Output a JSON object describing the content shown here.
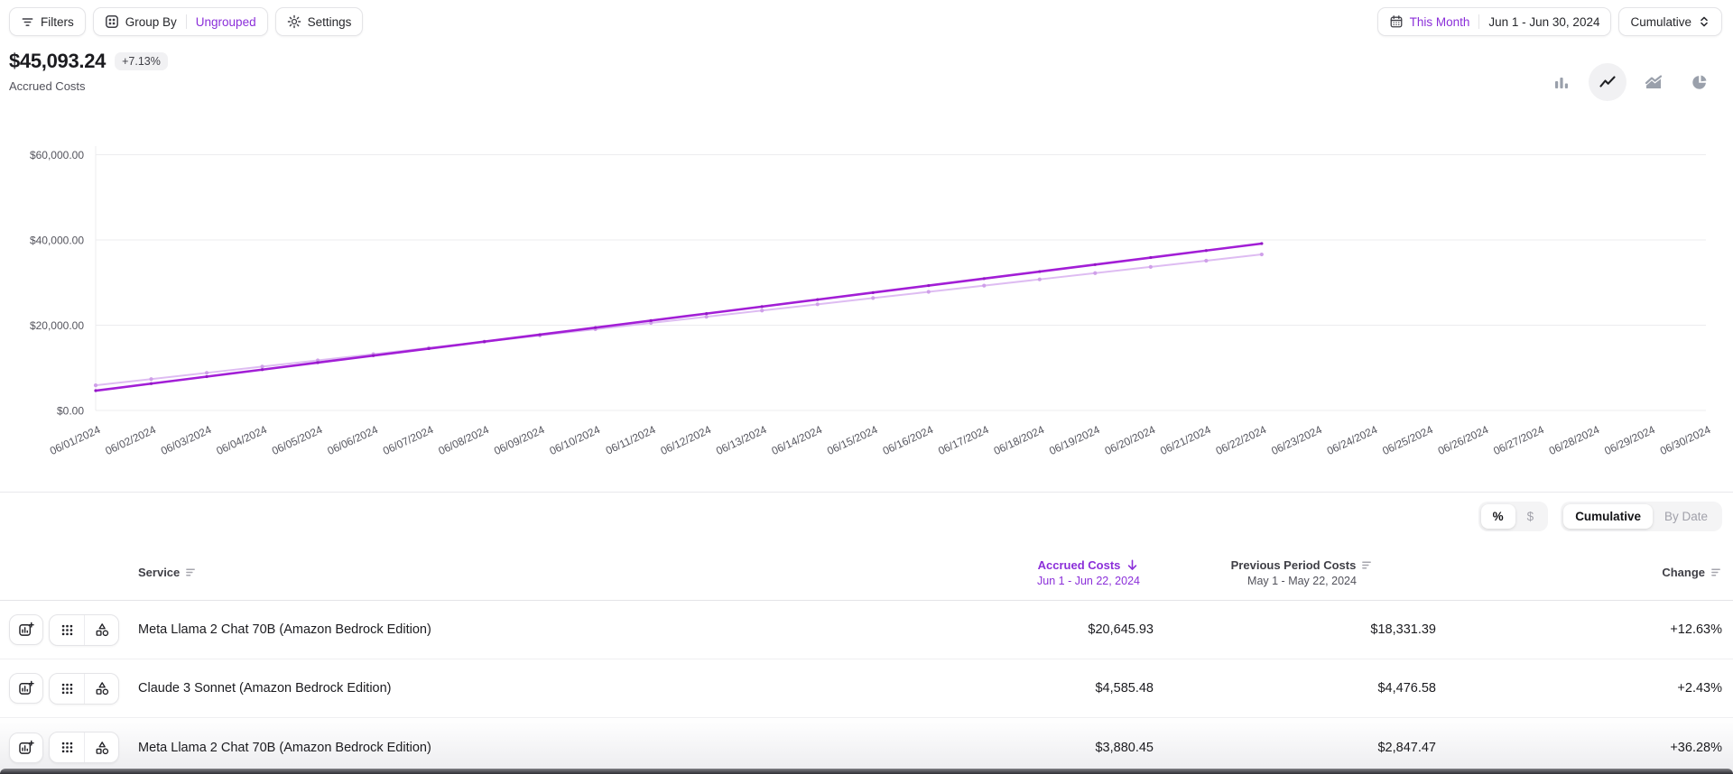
{
  "colors": {
    "accent": "#8b2fd9",
    "grid": "#ececef",
    "axis_text": "#55555e",
    "icon_gray": "#9aa0ab"
  },
  "toolbar": {
    "filters": "Filters",
    "group_by": "Group By",
    "group_by_value": "Ungrouped",
    "settings": "Settings",
    "date_preset": "This Month",
    "date_range": "Jun 1 - Jun 30, 2024",
    "granularity": "Cumulative"
  },
  "summary": {
    "total": "$45,093.24",
    "change_badge": "+7.13%",
    "label": "Accrued Costs"
  },
  "chart_toolbar": {
    "icons": [
      "bar-chart-icon",
      "line-chart-icon",
      "area-chart-icon",
      "pie-chart-icon"
    ],
    "selected": "line-chart-icon"
  },
  "chart_data": {
    "type": "line",
    "title": "Accrued Costs",
    "xlabel": "",
    "ylabel": "",
    "ylim": [
      0,
      60000
    ],
    "grid": true,
    "legend": "none",
    "yticks": [
      {
        "label": "$0.00",
        "value": 0
      },
      {
        "label": "$20,000.00",
        "value": 20000
      },
      {
        "label": "$40,000.00",
        "value": 40000
      },
      {
        "label": "$60,000.00",
        "value": 60000
      }
    ],
    "x": [
      "06/01/2024",
      "06/02/2024",
      "06/03/2024",
      "06/04/2024",
      "06/05/2024",
      "06/06/2024",
      "06/07/2024",
      "06/08/2024",
      "06/09/2024",
      "06/10/2024",
      "06/11/2024",
      "06/12/2024",
      "06/13/2024",
      "06/14/2024",
      "06/15/2024",
      "06/16/2024",
      "06/17/2024",
      "06/18/2024",
      "06/19/2024",
      "06/20/2024",
      "06/21/2024",
      "06/22/2024",
      "06/23/2024",
      "06/24/2024",
      "06/25/2024",
      "06/26/2024",
      "06/27/2024",
      "06/28/2024",
      "06/29/2024",
      "06/30/2024"
    ],
    "series": [
      {
        "name": "Accrued Costs (Jun 1 - Jun 22, 2024)",
        "color": "#a21ed6",
        "marker": "#9218c4",
        "values": [
          4650,
          6293,
          7936,
          9579,
          11222,
          12865,
          14508,
          16151,
          17794,
          19437,
          21080,
          22723,
          24366,
          26009,
          27652,
          29295,
          30938,
          32581,
          34224,
          35867,
          37510,
          39153
        ]
      },
      {
        "name": "Previous Period Costs (May 1 - May 22, 2024)",
        "color": "#debcf2",
        "marker": "#cf9fe9",
        "values": [
          5900,
          7362,
          8824,
          10286,
          11748,
          13210,
          14672,
          16134,
          17596,
          19058,
          20520,
          21982,
          23444,
          24906,
          26368,
          27830,
          29292,
          30754,
          32216,
          33678,
          35140,
          36602
        ]
      }
    ]
  },
  "view_toggles": {
    "percent": "%",
    "dollar": "$",
    "cumulative": "Cumulative",
    "by_date": "By Date",
    "selected_unit": "%",
    "selected_mode": "Cumulative"
  },
  "table": {
    "headers": {
      "service": "Service",
      "accrued": "Accrued Costs",
      "accrued_sub": "Jun 1 - Jun 22, 2024",
      "previous": "Previous Period Costs",
      "previous_sub": "May 1 - May 22, 2024",
      "change": "Change"
    },
    "rows": [
      {
        "service": "Meta Llama 2 Chat 70B (Amazon Bedrock Edition)",
        "accrued": "$20,645.93",
        "previous": "$18,331.39",
        "change": "+12.63%"
      },
      {
        "service": "Claude 3 Sonnet (Amazon Bedrock Edition)",
        "accrued": "$4,585.48",
        "previous": "$4,476.58",
        "change": "+2.43%"
      },
      {
        "service": "Meta Llama 2 Chat 70B (Amazon Bedrock Edition)",
        "accrued": "$3,880.45",
        "previous": "$2,847.47",
        "change": "+36.28%"
      }
    ]
  },
  "icons": {
    "filter-icon": "three horizontal funnel lines",
    "group-by-icon": "rounded square with 2x2 dots",
    "gear-icon": "settings cog",
    "calendar-icon": "outline calendar with dots",
    "select-up-down-icon": "stacked chevrons",
    "bar-chart-icon": "vertical bars",
    "line-chart-icon": "zigzag line",
    "area-chart-icon": "stacked area mountains",
    "pie-chart-icon": "pie with detached slice",
    "sort-icon": "three decreasing lines",
    "sort-desc-arrow-icon": "down arrow",
    "add-chart-icon": "chart box with plus",
    "grid-3x3-icon": "nine dots grid",
    "shapes-icon": "triangle square circle"
  }
}
